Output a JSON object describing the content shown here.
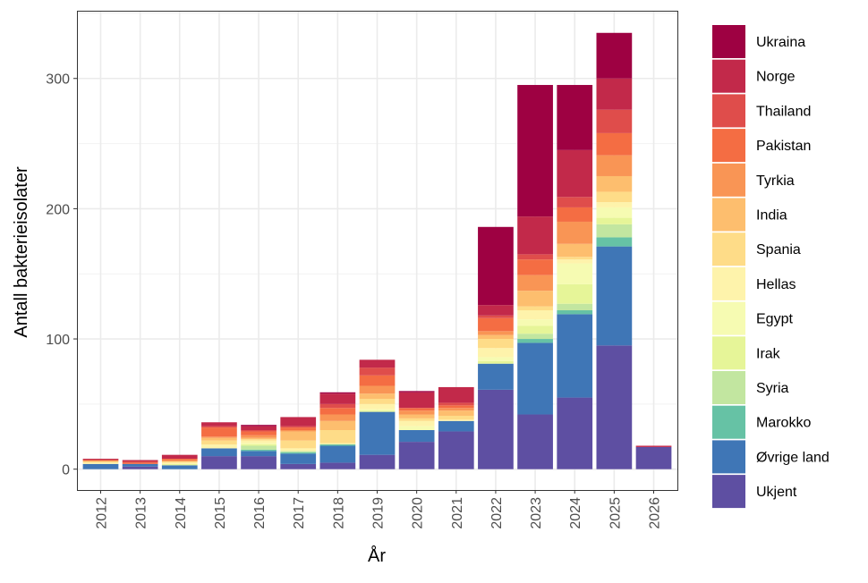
{
  "chart_data": {
    "type": "bar",
    "stacked": true,
    "xlabel": "År",
    "ylabel": "Antall bakterieisolater",
    "ylim": [
      -16,
      352
    ],
    "yticks": [
      0,
      100,
      200,
      300
    ],
    "grid": true,
    "legend_position": "right",
    "categories": [
      "2012",
      "2013",
      "2014",
      "2015",
      "2016",
      "2017",
      "2018",
      "2019",
      "2020",
      "2021",
      "2022",
      "2023",
      "2024",
      "2025",
      "2026"
    ],
    "series": [
      {
        "name": "Ukjent",
        "color": "#5E4FA2",
        "values": [
          0,
          2,
          0,
          10,
          10,
          4,
          5,
          11,
          21,
          29,
          61,
          42,
          55,
          95,
          17
        ]
      },
      {
        "name": "Øvrige land",
        "color": "#3F76B6",
        "values": [
          4,
          2,
          3,
          6,
          4,
          8,
          13,
          33,
          9,
          8,
          20,
          55,
          64,
          76,
          0
        ]
      },
      {
        "name": "Marokko",
        "color": "#66C2A5",
        "values": [
          0,
          0,
          0,
          0,
          1,
          1,
          1,
          0,
          0,
          0,
          0,
          3,
          3,
          7,
          0
        ]
      },
      {
        "name": "Syria",
        "color": "#C2E6A0",
        "values": [
          0,
          0,
          0,
          0,
          3,
          1,
          0,
          0,
          0,
          0,
          0,
          4,
          5,
          10,
          0
        ]
      },
      {
        "name": "Irak",
        "color": "#E6F598",
        "values": [
          0,
          0,
          1,
          0,
          1,
          0,
          0,
          1,
          0,
          0,
          2,
          6,
          15,
          5,
          0
        ]
      },
      {
        "name": "Egypt",
        "color": "#F6FBB2",
        "values": [
          0,
          0,
          0,
          0,
          1,
          0,
          0,
          1,
          3,
          0,
          3,
          5,
          16,
          8,
          0
        ]
      },
      {
        "name": "Hellas",
        "color": "#FEF3AB",
        "values": [
          1,
          0,
          1,
          3,
          2,
          2,
          1,
          4,
          4,
          1,
          7,
          7,
          3,
          4,
          0
        ]
      },
      {
        "name": "Spania",
        "color": "#FEDC88",
        "values": [
          1,
          0,
          1,
          3,
          1,
          6,
          10,
          4,
          2,
          3,
          7,
          3,
          2,
          8,
          0
        ]
      },
      {
        "name": "India",
        "color": "#FDBE6E",
        "values": [
          0,
          0,
          0,
          2,
          1,
          7,
          7,
          4,
          3,
          4,
          3,
          12,
          10,
          12,
          0
        ]
      },
      {
        "name": "Tyrkia",
        "color": "#F99555",
        "values": [
          1,
          0,
          1,
          1,
          2,
          1,
          5,
          6,
          3,
          2,
          3,
          12,
          17,
          16,
          0
        ]
      },
      {
        "name": "Pakistan",
        "color": "#F46D43",
        "values": [
          0,
          1,
          1,
          7,
          3,
          2,
          5,
          8,
          2,
          2,
          10,
          12,
          11,
          17,
          0
        ]
      },
      {
        "name": "Thailand",
        "color": "#DF4D4B",
        "values": [
          0,
          1,
          0,
          1,
          1,
          1,
          3,
          6,
          0,
          2,
          2,
          4,
          8,
          18,
          0
        ]
      },
      {
        "name": "Norge",
        "color": "#C2294A",
        "values": [
          1,
          1,
          3,
          3,
          3,
          7,
          8,
          6,
          12,
          12,
          8,
          29,
          36,
          24,
          1
        ]
      },
      {
        "name": "Ukraina",
        "color": "#9E0142",
        "values": [
          0,
          0,
          0,
          0,
          1,
          0,
          1,
          0,
          1,
          0,
          60,
          101,
          50,
          35,
          0
        ]
      }
    ]
  }
}
